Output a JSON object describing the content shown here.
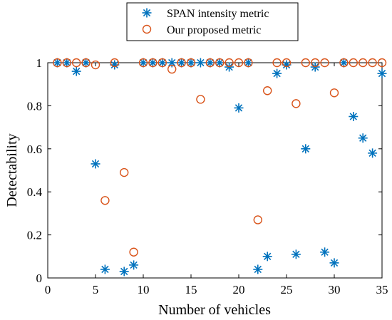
{
  "chart_data": {
    "type": "scatter",
    "xlabel": "Number of vehicles",
    "ylabel": "Detectability",
    "xlim": [
      0,
      35
    ],
    "ylim": [
      0,
      1
    ],
    "xticks": [
      0,
      5,
      10,
      15,
      20,
      25,
      30,
      35
    ],
    "yticks": [
      0,
      0.2,
      0.4,
      0.6,
      0.8,
      1
    ],
    "xtick_labels": [
      "0",
      "5",
      "10",
      "15",
      "20",
      "25",
      "30",
      "35"
    ],
    "ytick_labels": [
      "0",
      "0.2",
      "0.4",
      "0.6",
      "0.8",
      "1"
    ],
    "grid": false,
    "legend_position": "top-center, outside plot",
    "series": [
      {
        "name": "SPAN intensity metric",
        "marker": "asterisk",
        "color": "#0072BD",
        "x": [
          1,
          2,
          3,
          4,
          5,
          6,
          7,
          8,
          9,
          10,
          11,
          12,
          13,
          14,
          15,
          16,
          17,
          18,
          19,
          20,
          21,
          22,
          23,
          24,
          25,
          26,
          27,
          28,
          29,
          30,
          31,
          32,
          33,
          34,
          35
        ],
        "y": [
          1,
          1,
          0.96,
          1,
          0.53,
          0.04,
          0.99,
          0.03,
          0.06,
          1,
          1,
          1,
          1,
          1,
          1,
          1,
          1,
          1,
          0.98,
          0.79,
          1,
          0.04,
          0.1,
          0.95,
          0.99,
          0.11,
          0.6,
          0.98,
          0.12,
          0.07,
          1,
          0.75,
          0.65,
          0.58,
          0.95
        ]
      },
      {
        "name": "Our proposed metric",
        "marker": "circle",
        "color": "#D95319",
        "x": [
          1,
          2,
          3,
          4,
          5,
          6,
          7,
          8,
          9,
          10,
          11,
          12,
          13,
          14,
          15,
          16,
          17,
          18,
          19,
          20,
          21,
          22,
          23,
          24,
          25,
          26,
          27,
          28,
          29,
          30,
          31,
          32,
          33,
          34,
          35
        ],
        "y": [
          1,
          1,
          1,
          1,
          0.99,
          0.36,
          1,
          0.49,
          0.12,
          1,
          1,
          1,
          0.97,
          1,
          1,
          0.83,
          1,
          1,
          1,
          1,
          1,
          0.27,
          0.87,
          1,
          1,
          0.81,
          1,
          1,
          1,
          0.86,
          1,
          1,
          1,
          1,
          1
        ]
      }
    ]
  }
}
